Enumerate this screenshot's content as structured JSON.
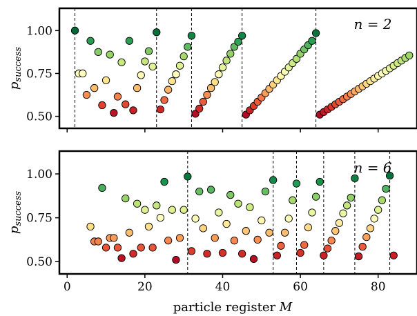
{
  "chart_data": [
    {
      "type": "scatter",
      "panel_label": "n = 2",
      "ylabel": "p_success",
      "xlabel": "",
      "xlim": [
        -2,
        90
      ],
      "ylim": [
        0.43,
        1.13
      ],
      "yticks": [
        0.5,
        0.75,
        1.0
      ],
      "ytick_labels": [
        "0.50",
        "0.75",
        "1.00"
      ],
      "xticks": [
        0,
        20,
        40,
        60,
        80
      ],
      "xtick_labels": [],
      "colormap": "RdYlGn",
      "vlines": [
        2,
        23,
        32,
        45,
        64
      ],
      "points": [
        [
          2,
          1.0
        ],
        [
          3,
          0.75
        ],
        [
          4,
          0.75
        ],
        [
          5,
          0.625
        ],
        [
          6,
          0.94
        ],
        [
          7,
          0.665
        ],
        [
          8,
          0.875
        ],
        [
          9,
          0.565
        ],
        [
          10,
          0.71
        ],
        [
          11,
          0.86
        ],
        [
          12,
          0.52
        ],
        [
          13,
          0.615
        ],
        [
          14,
          0.815
        ],
        [
          15,
          0.57
        ],
        [
          16,
          0.94
        ],
        [
          17,
          0.535
        ],
        [
          18,
          0.665
        ],
        [
          19,
          0.74
        ],
        [
          20,
          0.82
        ],
        [
          21,
          0.88
        ],
        [
          22,
          0.79
        ],
        [
          23,
          0.99
        ],
        [
          24,
          0.54
        ],
        [
          25,
          0.595
        ],
        [
          26,
          0.655
        ],
        [
          27,
          0.705
        ],
        [
          28,
          0.745
        ],
        [
          29,
          0.795
        ],
        [
          30,
          0.85
        ],
        [
          31,
          0.905
        ],
        [
          32,
          0.97
        ],
        [
          33,
          0.515
        ],
        [
          34,
          0.545
        ],
        [
          35,
          0.585
        ],
        [
          36,
          0.625
        ],
        [
          37,
          0.665
        ],
        [
          38,
          0.7
        ],
        [
          39,
          0.745
        ],
        [
          40,
          0.785
        ],
        [
          41,
          0.825
        ],
        [
          42,
          0.865
        ],
        [
          43,
          0.905
        ],
        [
          44,
          0.935
        ],
        [
          45,
          0.97
        ],
        [
          46,
          0.51
        ],
        [
          47,
          0.535
        ],
        [
          48,
          0.56
        ],
        [
          49,
          0.585
        ],
        [
          50,
          0.61
        ],
        [
          51,
          0.635
        ],
        [
          52,
          0.66
        ],
        [
          53,
          0.685
        ],
        [
          54,
          0.71
        ],
        [
          55,
          0.735
        ],
        [
          56,
          0.76
        ],
        [
          57,
          0.785
        ],
        [
          58,
          0.81
        ],
        [
          59,
          0.835
        ],
        [
          60,
          0.865
        ],
        [
          61,
          0.89
        ],
        [
          62,
          0.915
        ],
        [
          63,
          0.94
        ],
        [
          64,
          0.985
        ],
        [
          65,
          0.51
        ],
        [
          66,
          0.525
        ],
        [
          67,
          0.54
        ],
        [
          68,
          0.555
        ],
        [
          69,
          0.57
        ],
        [
          70,
          0.585
        ],
        [
          71,
          0.6
        ],
        [
          72,
          0.615
        ],
        [
          73,
          0.63
        ],
        [
          74,
          0.645
        ],
        [
          75,
          0.66
        ],
        [
          76,
          0.675
        ],
        [
          77,
          0.69
        ],
        [
          78,
          0.705
        ],
        [
          79,
          0.72
        ],
        [
          80,
          0.735
        ],
        [
          81,
          0.75
        ],
        [
          82,
          0.765
        ],
        [
          83,
          0.78
        ],
        [
          84,
          0.795
        ],
        [
          85,
          0.81
        ],
        [
          86,
          0.825
        ],
        [
          87,
          0.84
        ],
        [
          88,
          0.855
        ]
      ]
    },
    {
      "type": "scatter",
      "panel_label": "n = 6",
      "ylabel": "p_success",
      "xlabel": "particle register M",
      "xlim": [
        -2,
        90
      ],
      "ylim": [
        0.43,
        1.13
      ],
      "yticks": [
        0.5,
        0.75,
        1.0
      ],
      "ytick_labels": [
        "0.50",
        "0.75",
        "1.00"
      ],
      "xticks": [
        0,
        20,
        40,
        60,
        80
      ],
      "xtick_labels": [
        "0",
        "20",
        "40",
        "60",
        "80"
      ],
      "colormap": "RdYlGn",
      "vlines": [
        31,
        53,
        59,
        66,
        74,
        83
      ],
      "points": [
        [
          6,
          0.7
        ],
        [
          7,
          0.615
        ],
        [
          8,
          0.615
        ],
        [
          9,
          0.92
        ],
        [
          10,
          0.58
        ],
        [
          11,
          0.635
        ],
        [
          12,
          0.635
        ],
        [
          13,
          0.58
        ],
        [
          14,
          0.52
        ],
        [
          15,
          0.86
        ],
        [
          16,
          0.665
        ],
        [
          17,
          0.545
        ],
        [
          18,
          0.83
        ],
        [
          19,
          0.58
        ],
        [
          20,
          0.795
        ],
        [
          21,
          0.7
        ],
        [
          22,
          0.58
        ],
        [
          23,
          0.82
        ],
        [
          24,
          0.75
        ],
        [
          25,
          0.955
        ],
        [
          26,
          0.62
        ],
        [
          27,
          0.795
        ],
        [
          28,
          0.51
        ],
        [
          29,
          0.635
        ],
        [
          30,
          0.795
        ],
        [
          31,
          0.985
        ],
        [
          32,
          0.56
        ],
        [
          33,
          0.745
        ],
        [
          34,
          0.9
        ],
        [
          35,
          0.69
        ],
        [
          36,
          0.545
        ],
        [
          37,
          0.91
        ],
        [
          38,
          0.635
        ],
        [
          39,
          0.78
        ],
        [
          40,
          0.55
        ],
        [
          41,
          0.715
        ],
        [
          42,
          0.88
        ],
        [
          43,
          0.62
        ],
        [
          44,
          0.83
        ],
        [
          45,
          0.545
        ],
        [
          46,
          0.675
        ],
        [
          47,
          0.81
        ],
        [
          48,
          0.515
        ],
        [
          49,
          0.625
        ],
        [
          50,
          0.735
        ],
        [
          51,
          0.9
        ],
        [
          52,
          0.665
        ],
        [
          53,
          0.965
        ],
        [
          54,
          0.535
        ],
        [
          55,
          0.59
        ],
        [
          56,
          0.665
        ],
        [
          57,
          0.745
        ],
        [
          58,
          0.85
        ],
        [
          59,
          0.945
        ],
        [
          60,
          0.55
        ],
        [
          61,
          0.595
        ],
        [
          62,
          0.695
        ],
        [
          63,
          0.78
        ],
        [
          64,
          0.87
        ],
        [
          65,
          0.955
        ],
        [
          66,
          0.535
        ],
        [
          67,
          0.575
        ],
        [
          68,
          0.62
        ],
        [
          69,
          0.675
        ],
        [
          70,
          0.72
        ],
        [
          71,
          0.775
        ],
        [
          72,
          0.82
        ],
        [
          73,
          0.865
        ],
        [
          74,
          0.975
        ],
        [
          75,
          0.53
        ],
        [
          76,
          0.585
        ],
        [
          77,
          0.64
        ],
        [
          78,
          0.69
        ],
        [
          79,
          0.745
        ],
        [
          80,
          0.795
        ],
        [
          81,
          0.85
        ],
        [
          82,
          0.915
        ],
        [
          83,
          0.99
        ],
        [
          84,
          0.535
        ]
      ]
    }
  ]
}
